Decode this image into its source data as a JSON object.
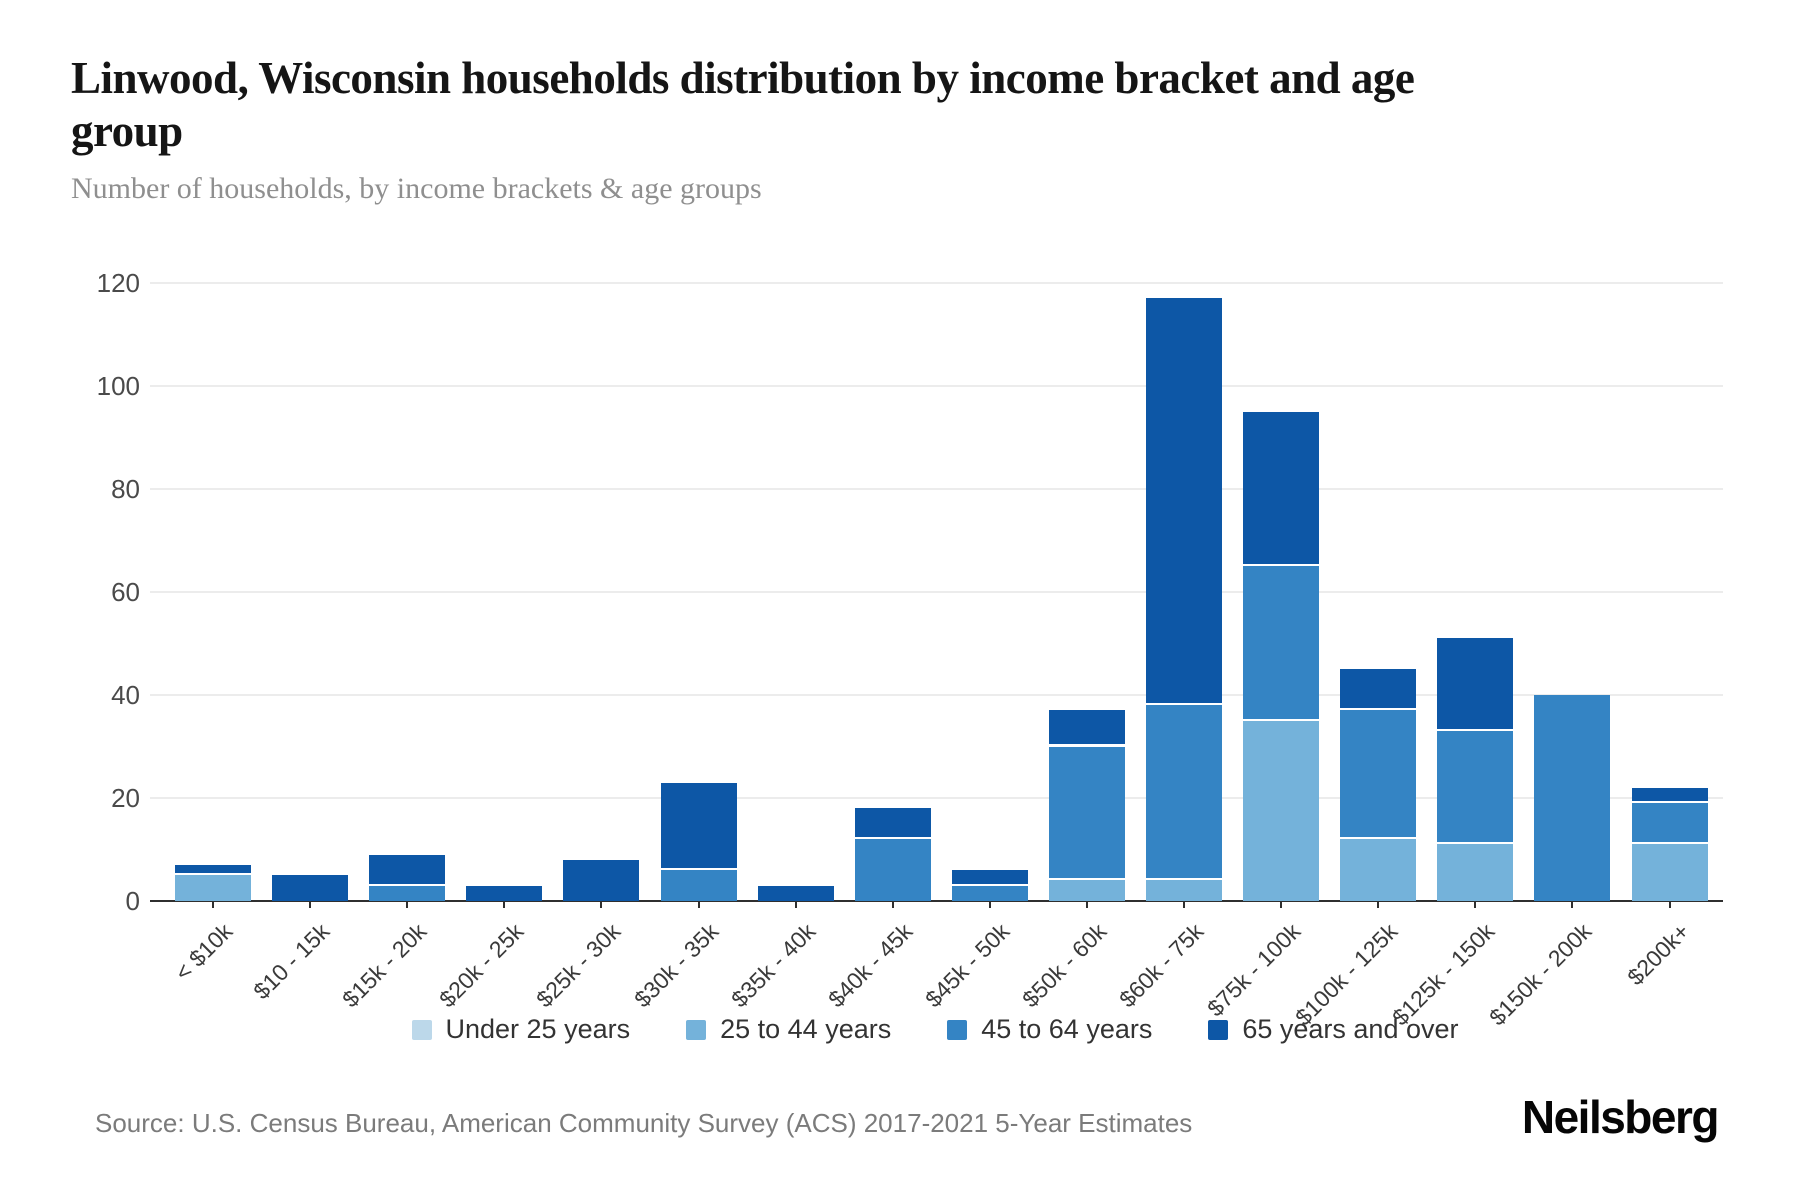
{
  "header": {
    "title": "Linwood, Wisconsin households distribution by income bracket and age group",
    "subtitle": "Number of households, by income brackets & age groups"
  },
  "chart_data": {
    "type": "bar",
    "stacked": true,
    "title": "Linwood, Wisconsin households distribution by income bracket and age group",
    "subtitle": "Number of households, by income brackets & age groups",
    "categories": [
      "< $10k",
      "$10 - 15k",
      "$15k - 20k",
      "$20k - 25k",
      "$25k - 30k",
      "$30k - 35k",
      "$35k - 40k",
      "$40k - 45k",
      "$45k - 50k",
      "$50k - 60k",
      "$60k - 75k",
      "$75k - 100k",
      "$100k - 125k",
      "$125k - 150k",
      "$150k - 200k",
      "$200k+"
    ],
    "series": [
      {
        "name": "Under 25 years",
        "color": "#bcd8ea",
        "values": [
          0,
          0,
          0,
          0,
          0,
          0,
          0,
          0,
          0,
          0,
          0,
          0,
          0,
          0,
          0,
          0
        ]
      },
      {
        "name": "25 to 44 years",
        "color": "#74b2da",
        "values": [
          5,
          0,
          0,
          0,
          0,
          0,
          0,
          0,
          0,
          4,
          4,
          35,
          12,
          11,
          0,
          11
        ]
      },
      {
        "name": "45 to 64 years",
        "color": "#3484c4",
        "values": [
          0,
          0,
          3,
          0,
          0,
          6,
          0,
          12,
          3,
          26,
          34,
          30,
          25,
          22,
          40,
          8
        ]
      },
      {
        "name": "65 years and over",
        "color": "#0d57a6",
        "values": [
          2,
          5,
          6,
          3,
          8,
          17,
          3,
          6,
          3,
          7,
          79,
          30,
          8,
          18,
          0,
          3
        ]
      }
    ],
    "totals": [
      7,
      5,
      9,
      3,
      8,
      23,
      3,
      18,
      6,
      37,
      117,
      95,
      45,
      51,
      40,
      22
    ],
    "xlabel": "",
    "ylabel": "",
    "ylim": [
      0,
      120
    ],
    "yticks": [
      0,
      20,
      40,
      60,
      80,
      100,
      120
    ],
    "grid": true,
    "legend_position": "bottom"
  },
  "footer": {
    "source": "Source: U.S. Census Bureau, American Community Survey (ACS) 2017-2021 5-Year Estimates",
    "brand": "Neilsberg"
  }
}
